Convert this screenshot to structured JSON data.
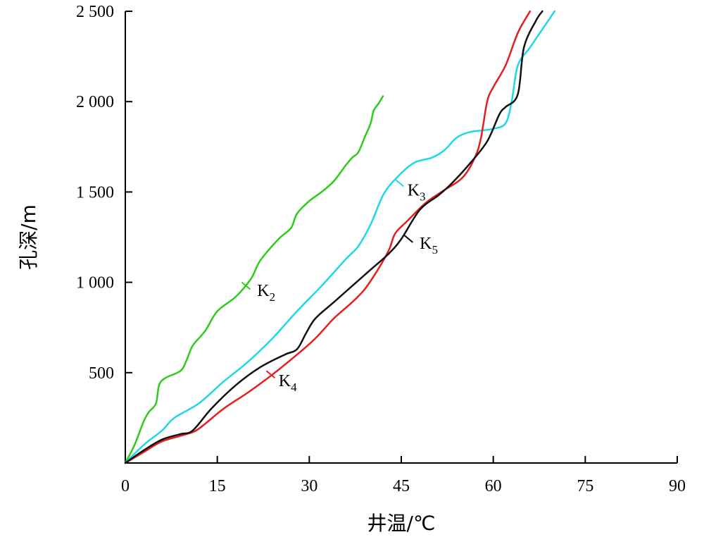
{
  "chart_data": {
    "type": "line",
    "orientation": "depth-vs-temperature",
    "xlabel": "井温/℃",
    "ylabel": "孔深/m",
    "xlim": [
      0,
      90
    ],
    "ylim": [
      0,
      2500
    ],
    "x_ticks": [
      "0",
      "15",
      "30",
      "45",
      "60",
      "75",
      "90"
    ],
    "y_ticks": [
      {
        "value": 500,
        "label": "500"
      },
      {
        "value": 1000,
        "label": "1 000"
      },
      {
        "value": 1500,
        "label": "1 500"
      },
      {
        "value": 2000,
        "label": "2 000"
      },
      {
        "value": 2500,
        "label": "2 500"
      }
    ],
    "grid": false,
    "legend": "none",
    "series": [
      {
        "name": "K2",
        "label_main": "K",
        "label_sub": "2",
        "color": "#2ecc1a",
        "points": [
          [
            0,
            0
          ],
          [
            1.5,
            100
          ],
          [
            3,
            230
          ],
          [
            3.8,
            280
          ],
          [
            5,
            330
          ],
          [
            5.5,
            430
          ],
          [
            6.5,
            470
          ],
          [
            9,
            510
          ],
          [
            10,
            570
          ],
          [
            11,
            650
          ],
          [
            13,
            730
          ],
          [
            15,
            840
          ],
          [
            18,
            920
          ],
          [
            20.5,
            1020
          ],
          [
            22,
            1120
          ],
          [
            25,
            1240
          ],
          [
            27,
            1300
          ],
          [
            28,
            1380
          ],
          [
            30,
            1450
          ],
          [
            32,
            1500
          ],
          [
            34,
            1560
          ],
          [
            36,
            1650
          ],
          [
            37,
            1690
          ],
          [
            38,
            1720
          ],
          [
            39,
            1800
          ],
          [
            40,
            1880
          ],
          [
            40.5,
            1950
          ],
          [
            41.3,
            1990
          ],
          [
            42,
            2030
          ]
        ],
        "label_at": [
          19,
          1000
        ],
        "label_text_at": [
          21.5,
          960
        ]
      },
      {
        "name": "K3",
        "label_main": "K",
        "label_sub": "3",
        "color": "#1ed8e6",
        "points": [
          [
            0,
            0
          ],
          [
            3,
            100
          ],
          [
            6,
            180
          ],
          [
            8,
            250
          ],
          [
            12,
            330
          ],
          [
            16,
            450
          ],
          [
            20,
            560
          ],
          [
            24,
            690
          ],
          [
            28,
            840
          ],
          [
            32,
            980
          ],
          [
            36,
            1130
          ],
          [
            38,
            1200
          ],
          [
            40,
            1320
          ],
          [
            42,
            1480
          ],
          [
            44,
            1570
          ],
          [
            47,
            1660
          ],
          [
            50,
            1690
          ],
          [
            52,
            1730
          ],
          [
            54,
            1800
          ],
          [
            56,
            1830
          ],
          [
            58,
            1840
          ],
          [
            60,
            1850
          ],
          [
            62,
            1880
          ],
          [
            63,
            2000
          ],
          [
            64,
            2200
          ],
          [
            66,
            2300
          ],
          [
            68,
            2400
          ],
          [
            70,
            2500
          ]
        ],
        "label_at": [
          44,
          1570
        ],
        "label_text_at": [
          46,
          1515
        ]
      },
      {
        "name": "K4",
        "label_main": "K",
        "label_sub": "4",
        "color": "#e61e1e",
        "points": [
          [
            0,
            0
          ],
          [
            3,
            60
          ],
          [
            6,
            120
          ],
          [
            10,
            160
          ],
          [
            12,
            190
          ],
          [
            16,
            300
          ],
          [
            20,
            390
          ],
          [
            24,
            490
          ],
          [
            28,
            600
          ],
          [
            31,
            690
          ],
          [
            34,
            800
          ],
          [
            37,
            890
          ],
          [
            39,
            960
          ],
          [
            41,
            1060
          ],
          [
            43,
            1180
          ],
          [
            44,
            1270
          ],
          [
            46,
            1340
          ],
          [
            49,
            1440
          ],
          [
            52,
            1510
          ],
          [
            55,
            1580
          ],
          [
            57,
            1690
          ],
          [
            58,
            1800
          ],
          [
            59,
            2000
          ],
          [
            60,
            2080
          ],
          [
            62,
            2200
          ],
          [
            64,
            2380
          ],
          [
            66,
            2500
          ]
        ],
        "label_at": [
          23,
          510
        ],
        "label_text_at": [
          25,
          460
        ]
      },
      {
        "name": "K5",
        "label_main": "K",
        "label_sub": "5",
        "color": "#111111",
        "points": [
          [
            0,
            0
          ],
          [
            3,
            70
          ],
          [
            6,
            130
          ],
          [
            9,
            160
          ],
          [
            11,
            180
          ],
          [
            14,
            300
          ],
          [
            18,
            430
          ],
          [
            22,
            530
          ],
          [
            26,
            600
          ],
          [
            28,
            630
          ],
          [
            29.5,
            720
          ],
          [
            31,
            800
          ],
          [
            34,
            890
          ],
          [
            37,
            980
          ],
          [
            40,
            1070
          ],
          [
            43,
            1160
          ],
          [
            45,
            1240
          ],
          [
            48,
            1400
          ],
          [
            51,
            1480
          ],
          [
            53,
            1540
          ],
          [
            56,
            1650
          ],
          [
            59,
            1780
          ],
          [
            61,
            1930
          ],
          [
            62,
            1970
          ],
          [
            64,
            2040
          ],
          [
            65,
            2300
          ],
          [
            67,
            2450
          ],
          [
            68,
            2500
          ]
        ],
        "label_at": [
          45.5,
          1260
        ],
        "label_text_at": [
          48,
          1220
        ]
      }
    ]
  }
}
